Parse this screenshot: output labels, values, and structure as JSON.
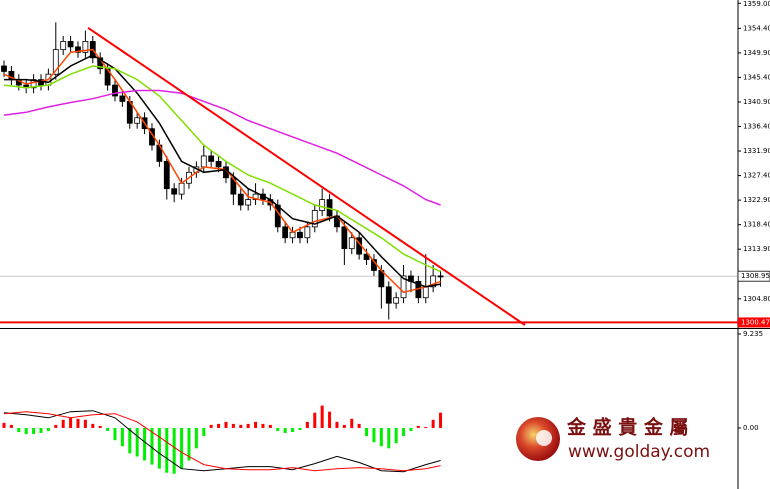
{
  "chart_data": [
    {
      "type": "candlestick",
      "xlim": [
        -0.54,
        99.2
      ],
      "ylim": [
        1300,
        1359.6
      ],
      "yticks": [
        {
          "value": 1359.0,
          "label": "1359.00"
        },
        {
          "value": 1354.4,
          "label": "1354.40"
        },
        {
          "value": 1349.9,
          "label": "1349.90"
        },
        {
          "value": 1345.4,
          "label": "1345.40"
        },
        {
          "value": 1340.9,
          "label": "1340.90"
        },
        {
          "value": 1336.4,
          "label": "1336.40"
        },
        {
          "value": 1331.9,
          "label": "1331.90"
        },
        {
          "value": 1327.4,
          "label": "1327.40"
        },
        {
          "value": 1322.9,
          "label": "1322.90"
        },
        {
          "value": 1318.4,
          "label": "1318.40"
        },
        {
          "value": 1313.9,
          "label": "1313.90"
        },
        {
          "value": 1304.8,
          "label": "1304.80"
        }
      ],
      "up_color": "#ffffff",
      "down_color": "#000000",
      "open": [
        1347.5,
        1346.5,
        1345,
        1344,
        1343.5,
        1345,
        1344,
        1346,
        1350.5,
        1352,
        1351,
        1350,
        1352,
        1349,
        1347,
        1344,
        1342,
        1341,
        1337,
        1338,
        1336,
        1333,
        1330,
        1325,
        1324,
        1326,
        1328,
        1329,
        1331,
        1330,
        1329,
        1327,
        1324,
        1322,
        1323,
        1324,
        1323,
        1322,
        1318,
        1316,
        1317,
        1316,
        1318,
        1321,
        1323,
        1320,
        1318,
        1314,
        1316,
        1313,
        1312,
        1310,
        1307,
        1304,
        1305,
        1309,
        1308,
        1305,
        1307,
        1309
      ],
      "high": [
        1348.5,
        1347.5,
        1346,
        1345,
        1346,
        1346,
        1347,
        1355.5,
        1353,
        1353,
        1352,
        1354,
        1353,
        1350,
        1348,
        1345,
        1343,
        1342,
        1339,
        1339,
        1337,
        1334,
        1331,
        1326,
        1327,
        1329,
        1330,
        1333,
        1332,
        1331,
        1330,
        1328,
        1325,
        1325,
        1326,
        1325,
        1324,
        1323,
        1319,
        1318,
        1318,
        1319,
        1322,
        1325,
        1324,
        1321,
        1319,
        1317,
        1317,
        1314,
        1313,
        1311,
        1308,
        1306,
        1311,
        1310,
        1309,
        1313,
        1311,
        1310
      ],
      "low": [
        1345.5,
        1344,
        1343,
        1342.5,
        1342.5,
        1343,
        1343,
        1345,
        1349.5,
        1350,
        1349,
        1349,
        1348,
        1346,
        1343,
        1341,
        1340,
        1336,
        1336,
        1335,
        1332,
        1329,
        1323,
        1322.5,
        1323,
        1325,
        1327,
        1328,
        1329,
        1328,
        1326,
        1322,
        1321,
        1321,
        1322,
        1322,
        1321,
        1317,
        1315,
        1315,
        1315,
        1315,
        1317,
        1320,
        1319,
        1317,
        1311,
        1313,
        1312,
        1311,
        1309,
        1303,
        1301,
        1303,
        1304,
        1306,
        1304,
        1304,
        1306,
        1307
      ],
      "close": [
        1346.5,
        1345,
        1344,
        1343.5,
        1345,
        1344,
        1346,
        1350.5,
        1352,
        1351,
        1350,
        1352,
        1349,
        1347,
        1344,
        1342,
        1341,
        1337,
        1338,
        1336,
        1333,
        1330,
        1325,
        1324,
        1326,
        1328,
        1329,
        1331,
        1330,
        1329,
        1327,
        1324,
        1322,
        1323,
        1324,
        1323,
        1322,
        1318,
        1316,
        1317,
        1316,
        1318,
        1321,
        1323,
        1320,
        1318,
        1314,
        1316,
        1313,
        1312,
        1310,
        1307,
        1304,
        1305,
        1309,
        1308,
        1305,
        1307,
        1309,
        1308.95
      ],
      "series": [
        {
          "color": "#ff4500",
          "x": [
            0,
            3,
            6,
            9,
            12,
            15,
            18,
            21,
            24,
            27,
            30,
            33,
            36,
            39,
            42,
            45,
            48,
            51,
            54,
            57,
            59
          ],
          "values": [
            1346,
            1344.2,
            1345,
            1350,
            1350.5,
            1345,
            1339,
            1333,
            1326,
            1329,
            1328.5,
            1323.5,
            1322.5,
            1317,
            1319,
            1320,
            1315,
            1310,
            1306,
            1307,
            1308
          ]
        },
        {
          "color": "#000000",
          "x": [
            0,
            3,
            6,
            9,
            12,
            15,
            18,
            21,
            24,
            27,
            30,
            33,
            36,
            39,
            42,
            45,
            48,
            51,
            54,
            57,
            59
          ],
          "values": [
            1345,
            1345,
            1344.5,
            1347.5,
            1349.5,
            1347,
            1342.5,
            1337,
            1330,
            1328,
            1328.5,
            1325,
            1323,
            1319.5,
            1318.5,
            1320,
            1317,
            1312.5,
            1308.5,
            1307,
            1307.5
          ]
        },
        {
          "color": "#7fe000",
          "x": [
            0,
            3,
            6,
            9,
            12,
            15,
            18,
            21,
            24,
            27,
            30,
            33,
            36,
            39,
            42,
            45,
            48,
            51,
            54,
            57,
            59
          ],
          "values": [
            1344,
            1343.5,
            1344,
            1346,
            1347.5,
            1347,
            1345,
            1342,
            1337.5,
            1333,
            1330,
            1327.5,
            1326,
            1324,
            1322,
            1321,
            1318.5,
            1316,
            1313,
            1311,
            1309.8
          ]
        },
        {
          "color": "#e020e0",
          "x": [
            0,
            3,
            6,
            9,
            12,
            15,
            18,
            21,
            24,
            27,
            30,
            33,
            36,
            39,
            42,
            45,
            48,
            51,
            54,
            57,
            59
          ],
          "values": [
            1338.5,
            1339,
            1340,
            1340.8,
            1341.5,
            1342.5,
            1343,
            1343,
            1342.5,
            1341,
            1339.5,
            1337.5,
            1336,
            1334.5,
            1333,
            1331.5,
            1329.5,
            1327.5,
            1325.5,
            1323,
            1322
          ]
        }
      ],
      "trendline": {
        "color": "#ff0000",
        "x": [
          11.35,
          70.4
        ],
        "values": [
          1354.5,
          1300.0
        ]
      },
      "support": {
        "color": "#ff0000",
        "value": 1300.47,
        "label": "1300.47"
      },
      "last": {
        "value": 1308.95,
        "label": "1308.95"
      }
    },
    {
      "type": "macd",
      "ylim": [
        -6,
        9.235
      ],
      "yticks": [
        9.235,
        {
          "value": 0,
          "label": "0.00"
        }
      ],
      "up_color": "#ff0000",
      "down_color": "#00ee00",
      "values": [
        0.5,
        0.3,
        -0.4,
        -0.6,
        -0.6,
        -0.5,
        -0.3,
        0.3,
        0.8,
        1.0,
        0.9,
        0.8,
        0.4,
        0.2,
        -0.3,
        -1.2,
        -1.8,
        -2.5,
        -2.8,
        -3.2,
        -3.6,
        -4.0,
        -4.4,
        -4.5,
        -4.0,
        -3.2,
        -2.0,
        -0.8,
        0.3,
        0.4,
        0.6,
        0.4,
        0.3,
        0.4,
        0.6,
        0.4,
        0.3,
        -0.3,
        -0.5,
        -0.4,
        -0.2,
        0.6,
        1.5,
        2.2,
        1.6,
        0.6,
        0.3,
        0.9,
        0.4,
        -0.8,
        -1.4,
        -1.8,
        -2.0,
        -1.5,
        -0.8,
        -0.3,
        0.2,
        0.1,
        0.8,
        1.5
      ],
      "series": [
        {
          "color": "#000000",
          "x": [
            0,
            3,
            6,
            9,
            12,
            15,
            18,
            21,
            24,
            27,
            30,
            33,
            36,
            39,
            42,
            45,
            48,
            51,
            54,
            57,
            59
          ],
          "values": [
            1.5,
            1.3,
            1.0,
            1.6,
            1.7,
            1.0,
            -0.8,
            -2.5,
            -4.0,
            -4.2,
            -4.0,
            -3.8,
            -3.8,
            -4.1,
            -3.5,
            -2.8,
            -3.4,
            -4.2,
            -4.3,
            -3.6,
            -3.2
          ]
        },
        {
          "color": "#ff0000",
          "x": [
            0,
            3,
            6,
            9,
            12,
            15,
            18,
            21,
            24,
            27,
            30,
            33,
            36,
            39,
            42,
            45,
            48,
            51,
            54,
            57,
            59
          ],
          "values": [
            1.4,
            1.6,
            1.4,
            1.0,
            1.3,
            1.4,
            0.6,
            -0.9,
            -2.4,
            -3.6,
            -4.0,
            -4.1,
            -4.1,
            -3.9,
            -4.2,
            -4.0,
            -3.9,
            -4.0,
            -4.2,
            -4.0,
            -3.7
          ]
        }
      ]
    }
  ],
  "logo": {
    "name": "金 盛 貴 金 屬",
    "url": "www.golday.com"
  }
}
